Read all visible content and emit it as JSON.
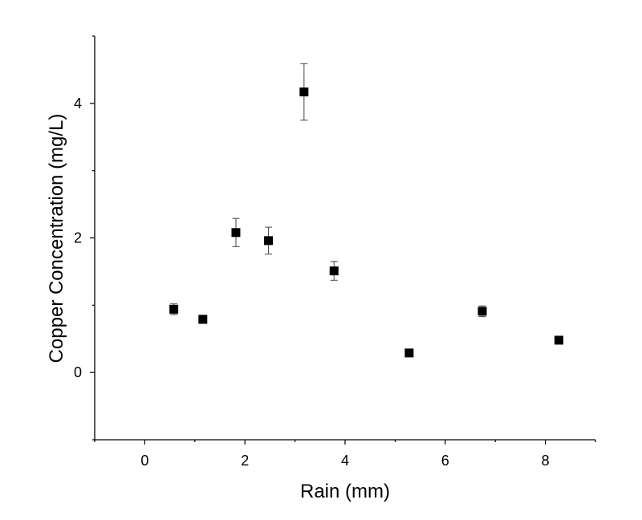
{
  "chart_data": {
    "type": "scatter",
    "xlabel": "Rain (mm)",
    "ylabel": "Copper Concentration (mg/L)",
    "xlim": [
      -1,
      9
    ],
    "ylim": [
      -1,
      5
    ],
    "x_ticks": [
      0,
      2,
      4,
      6,
      8
    ],
    "y_ticks": [
      0,
      2,
      4
    ],
    "grid": false,
    "marker": "square",
    "marker_color": "#000000",
    "error_bar_color": "#555555",
    "points": [
      {
        "x": 0.58,
        "y": 0.94,
        "err": 0.08
      },
      {
        "x": 1.16,
        "y": 0.79,
        "err": 0.06
      },
      {
        "x": 1.82,
        "y": 2.08,
        "err": 0.21
      },
      {
        "x": 2.47,
        "y": 1.96,
        "err": 0.2
      },
      {
        "x": 3.18,
        "y": 4.17,
        "err": 0.42
      },
      {
        "x": 3.78,
        "y": 1.51,
        "err": 0.14
      },
      {
        "x": 5.28,
        "y": 0.29,
        "err": 0.02
      },
      {
        "x": 6.74,
        "y": 0.91,
        "err": 0.08
      },
      {
        "x": 8.27,
        "y": 0.48,
        "err": 0.02
      }
    ]
  }
}
